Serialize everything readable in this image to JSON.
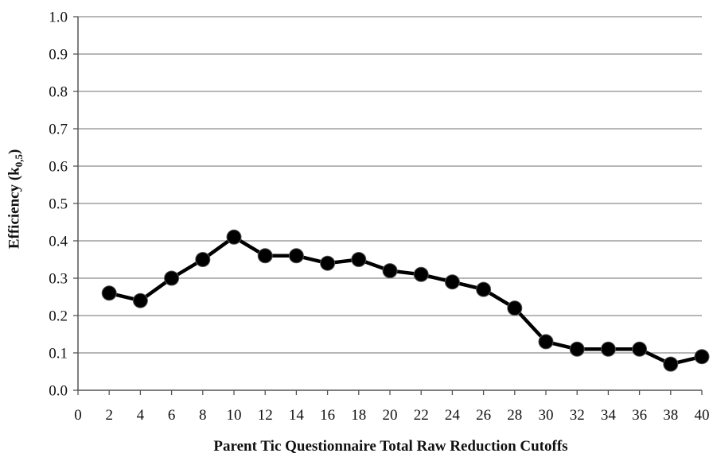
{
  "chart_data": {
    "type": "line",
    "title": "",
    "xlabel": "Parent Tic Questionnaire Total Raw Reduction Cutoffs",
    "ylabel": {
      "main": "Efficiency (k",
      "sub": "0,5",
      "close": ")"
    },
    "x_ticks": [
      "0",
      "2",
      "4",
      "6",
      "8",
      "10",
      "12",
      "14",
      "16",
      "18",
      "20",
      "22",
      "24",
      "26",
      "28",
      "30",
      "32",
      "34",
      "36",
      "38",
      "40"
    ],
    "y_ticks": [
      "0.0",
      "0.1",
      "0.2",
      "0.3",
      "0.4",
      "0.5",
      "0.6",
      "0.7",
      "0.8",
      "0.9",
      "1.0"
    ],
    "xlim": [
      0,
      40
    ],
    "ylim": [
      0,
      1.0
    ],
    "grid": "horizontal",
    "series": [
      {
        "x": [
          2,
          4,
          6,
          8,
          10,
          12,
          14,
          16,
          18,
          20,
          22,
          24,
          26,
          28,
          30,
          32,
          34,
          36,
          38,
          40
        ],
        "values": [
          0.26,
          0.24,
          0.3,
          0.35,
          0.41,
          0.36,
          0.36,
          0.34,
          0.35,
          0.32,
          0.31,
          0.29,
          0.27,
          0.22,
          0.13,
          0.11,
          0.11,
          0.11,
          0.07,
          0.09
        ],
        "color": "#000000"
      }
    ]
  }
}
